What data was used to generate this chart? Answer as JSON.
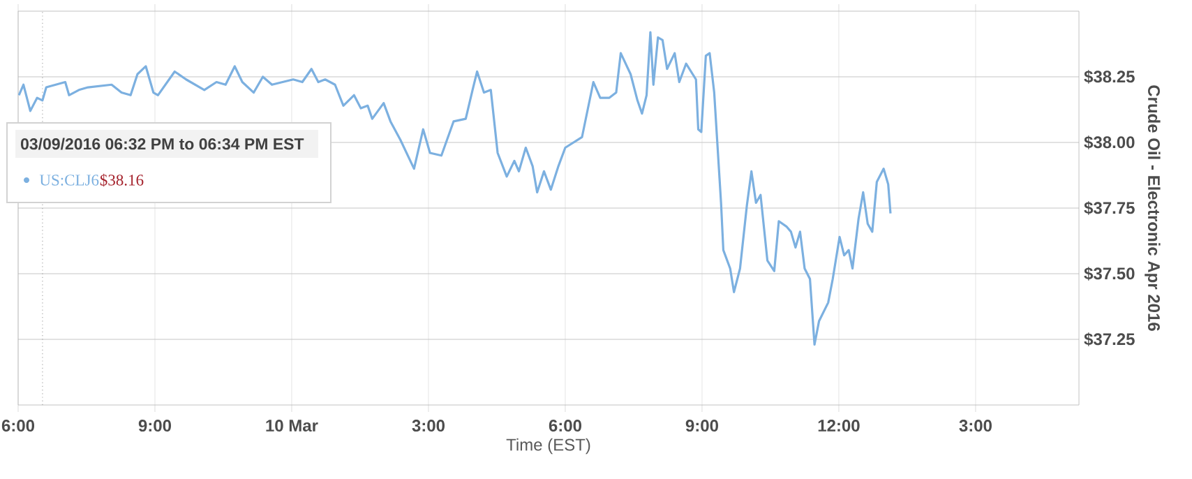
{
  "chart_data": {
    "type": "line",
    "xlabel": "Time (EST)",
    "ylabel": "Crude Oil - Electronic Apr 2016",
    "xlim": [
      "2016-03-09T18:00",
      "2016-03-10T17:16"
    ],
    "xticks": [
      {
        "value": "2016-03-09T18:00",
        "label": "6:00"
      },
      {
        "value": "2016-03-09T21:00",
        "label": "9:00"
      },
      {
        "value": "2016-03-10T00:00",
        "label": "10 Mar"
      },
      {
        "value": "2016-03-10T03:00",
        "label": "3:00"
      },
      {
        "value": "2016-03-10T06:00",
        "label": "6:00"
      },
      {
        "value": "2016-03-10T09:00",
        "label": "9:00"
      },
      {
        "value": "2016-03-10T12:00",
        "label": "12:00"
      },
      {
        "value": "2016-03-10T15:00",
        "label": "3:00"
      }
    ],
    "ylim": [
      37.0,
      38.5
    ],
    "yticks": [
      {
        "value": 37.25,
        "label": "$37.25"
      },
      {
        "value": 37.5,
        "label": "$37.50"
      },
      {
        "value": 37.75,
        "label": "$37.75"
      },
      {
        "value": 38.0,
        "label": "$38.00"
      },
      {
        "value": 38.25,
        "label": "$38.25"
      }
    ],
    "grid": true,
    "marker": "none",
    "line_style": "solid",
    "ref_lines": [
      {
        "axis": "x",
        "value": "2016-03-09T18:32",
        "line_style": "dotted",
        "color": "#999999"
      }
    ],
    "annotations": [
      "03/09/2016 06:32 PM to 06:34 PM EST",
      "US:CLJ6",
      "$38.16"
    ],
    "series": [
      {
        "color": "#7cb0e0",
        "x": [
          "2016-03-09T18:01",
          "2016-03-09T18:07",
          "2016-03-09T18:16",
          "2016-03-09T18:25",
          "2016-03-09T18:32",
          "2016-03-09T18:37",
          "2016-03-09T19:02",
          "2016-03-09T19:07",
          "2016-03-09T19:20",
          "2016-03-09T19:32",
          "2016-03-09T20:03",
          "2016-03-09T20:16",
          "2016-03-09T20:28",
          "2016-03-09T20:37",
          "2016-03-09T20:48",
          "2016-03-09T20:58",
          "2016-03-09T21:04",
          "2016-03-09T21:26",
          "2016-03-09T21:41",
          "2016-03-09T22:05",
          "2016-03-09T22:21",
          "2016-03-09T22:33",
          "2016-03-09T22:45",
          "2016-03-09T22:55",
          "2016-03-09T23:10",
          "2016-03-09T23:22",
          "2016-03-09T23:34",
          "2016-03-10T00:02",
          "2016-03-10T00:14",
          "2016-03-10T00:26",
          "2016-03-10T00:35",
          "2016-03-10T00:44",
          "2016-03-10T00:57",
          "2016-03-10T01:08",
          "2016-03-10T01:22",
          "2016-03-10T01:31",
          "2016-03-10T01:40",
          "2016-03-10T01:46",
          "2016-03-10T02:01",
          "2016-03-10T02:10",
          "2016-03-10T02:23",
          "2016-03-10T02:41",
          "2016-03-10T02:53",
          "2016-03-10T03:02",
          "2016-03-10T03:17",
          "2016-03-10T03:33",
          "2016-03-10T03:49",
          "2016-03-10T03:58",
          "2016-03-10T04:04",
          "2016-03-10T04:13",
          "2016-03-10T04:22",
          "2016-03-10T04:31",
          "2016-03-10T04:43",
          "2016-03-10T04:53",
          "2016-03-10T04:59",
          "2016-03-10T05:08",
          "2016-03-10T05:17",
          "2016-03-10T05:23",
          "2016-03-10T05:32",
          "2016-03-10T05:41",
          "2016-03-10T05:51",
          "2016-03-10T06:00",
          "2016-03-10T06:22",
          "2016-03-10T06:37",
          "2016-03-10T06:46",
          "2016-03-10T06:58",
          "2016-03-10T07:07",
          "2016-03-10T07:13",
          "2016-03-10T07:26",
          "2016-03-10T07:35",
          "2016-03-10T07:41",
          "2016-03-10T07:47",
          "2016-03-10T07:52",
          "2016-03-10T07:56",
          "2016-03-10T08:02",
          "2016-03-10T08:08",
          "2016-03-10T08:14",
          "2016-03-10T08:24",
          "2016-03-10T08:30",
          "2016-03-10T08:39",
          "2016-03-10T08:52",
          "2016-03-10T08:55",
          "2016-03-10T08:59",
          "2016-03-10T09:05",
          "2016-03-10T09:10",
          "2016-03-10T09:16",
          "2016-03-10T09:25",
          "2016-03-10T09:28",
          "2016-03-10T09:37",
          "2016-03-10T09:42",
          "2016-03-10T09:50",
          "2016-03-10T09:59",
          "2016-03-10T10:05",
          "2016-03-10T10:11",
          "2016-03-10T10:17",
          "2016-03-10T10:26",
          "2016-03-10T10:35",
          "2016-03-10T10:41",
          "2016-03-10T10:51",
          "2016-03-10T10:57",
          "2016-03-10T11:03",
          "2016-03-10T11:09",
          "2016-03-10T11:15",
          "2016-03-10T11:22",
          "2016-03-10T11:28",
          "2016-03-10T11:34",
          "2016-03-10T11:46",
          "2016-03-10T11:52",
          "2016-03-10T12:01",
          "2016-03-10T12:07",
          "2016-03-10T12:13",
          "2016-03-10T12:18",
          "2016-03-10T12:26",
          "2016-03-10T12:32",
          "2016-03-10T12:38",
          "2016-03-10T12:44",
          "2016-03-10T12:50",
          "2016-03-10T12:59",
          "2016-03-10T13:05",
          "2016-03-10T13:08"
        ],
        "values": [
          38.18,
          38.22,
          38.12,
          38.17,
          38.16,
          38.21,
          38.23,
          38.18,
          38.2,
          38.21,
          38.22,
          38.19,
          38.18,
          38.26,
          38.29,
          38.19,
          38.18,
          38.27,
          38.24,
          38.2,
          38.23,
          38.22,
          38.29,
          38.23,
          38.19,
          38.25,
          38.22,
          38.24,
          38.23,
          38.28,
          38.23,
          38.24,
          38.22,
          38.14,
          38.18,
          38.13,
          38.14,
          38.09,
          38.15,
          38.08,
          38.01,
          37.9,
          38.05,
          37.96,
          37.95,
          38.08,
          38.09,
          38.2,
          38.27,
          38.19,
          38.2,
          37.96,
          37.87,
          37.93,
          37.89,
          37.98,
          37.91,
          37.81,
          37.89,
          37.82,
          37.91,
          37.98,
          38.02,
          38.23,
          38.17,
          38.17,
          38.19,
          38.34,
          38.26,
          38.16,
          38.11,
          38.18,
          38.42,
          38.22,
          38.4,
          38.39,
          38.28,
          38.34,
          38.23,
          38.3,
          38.24,
          38.05,
          38.04,
          38.33,
          38.34,
          38.19,
          37.77,
          37.59,
          37.52,
          37.43,
          37.52,
          37.76,
          37.89,
          37.77,
          37.8,
          37.55,
          37.51,
          37.7,
          37.68,
          37.66,
          37.6,
          37.66,
          37.52,
          37.48,
          37.23,
          37.32,
          37.39,
          37.48,
          37.64,
          37.57,
          37.59,
          37.52,
          37.71,
          37.81,
          37.69,
          37.66,
          37.85,
          37.9,
          37.84,
          37.73
        ]
      }
    ]
  }
}
